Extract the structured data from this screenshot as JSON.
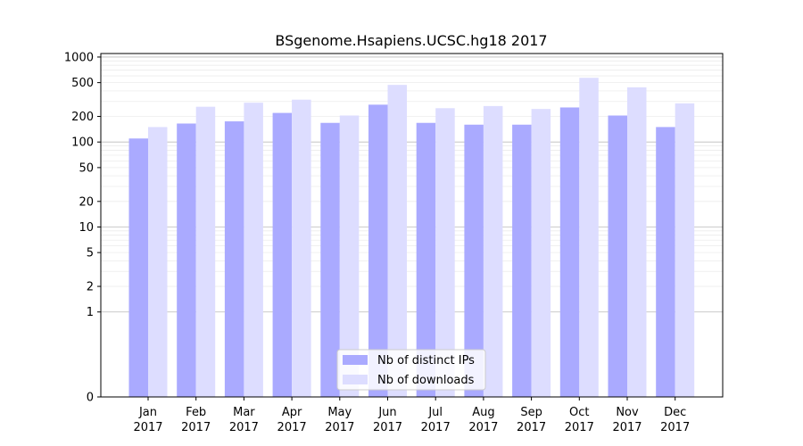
{
  "chart_data": {
    "type": "bar",
    "title": "BSgenome.Hsapiens.UCSC.hg18 2017",
    "xlabel": "",
    "ylabel": "",
    "yscale": "symlog",
    "ylim": [
      0,
      1100
    ],
    "yticks": [
      "0",
      "1",
      "2",
      "5",
      "10",
      "20",
      "50",
      "100",
      "200",
      "500",
      "1000"
    ],
    "grid": true,
    "legend_position": "bottom-center",
    "categories": [
      [
        "Jan",
        "2017"
      ],
      [
        "Feb",
        "2017"
      ],
      [
        "Mar",
        "2017"
      ],
      [
        "Apr",
        "2017"
      ],
      [
        "May",
        "2017"
      ],
      [
        "Jun",
        "2017"
      ],
      [
        "Jul",
        "2017"
      ],
      [
        "Aug",
        "2017"
      ],
      [
        "Sep",
        "2017"
      ],
      [
        "Oct",
        "2017"
      ],
      [
        "Nov",
        "2017"
      ],
      [
        "Dec",
        "2017"
      ]
    ],
    "series": [
      {
        "name": "Nb of distinct IPs",
        "color": "#aaaaff",
        "values": [
          110,
          165,
          175,
          220,
          168,
          275,
          168,
          160,
          160,
          255,
          205,
          150
        ]
      },
      {
        "name": "Nb of downloads",
        "color": "#ddddff",
        "values": [
          150,
          260,
          290,
          315,
          205,
          470,
          250,
          265,
          245,
          570,
          440,
          285
        ]
      }
    ]
  }
}
